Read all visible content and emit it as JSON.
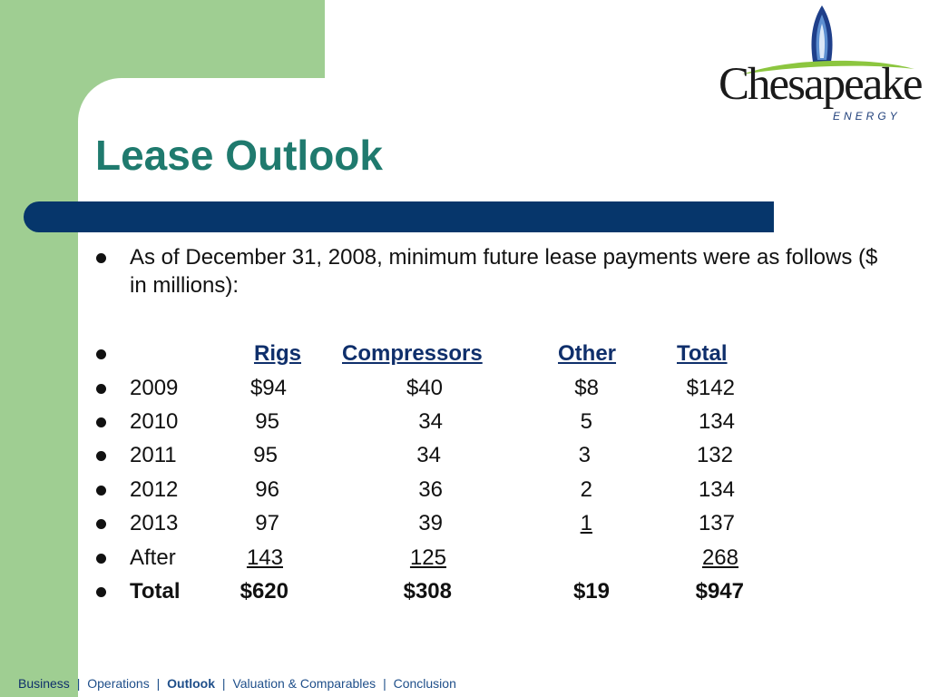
{
  "logo": {
    "wordmark": "Chesapeake",
    "subtitle": "ENERGY",
    "colors": {
      "flame": "#1f3f8a",
      "swoosh": "#8cc63f"
    }
  },
  "title": "Lease Outlook",
  "intro": "As of December 31, 2008, minimum future lease payments were as follows ($ in millions):",
  "table": {
    "headers": [
      "Rigs",
      "Compressors",
      "Other",
      "Total"
    ],
    "rows": [
      {
        "label": "2009",
        "rigs": "$94",
        "compressors": "$40",
        "other": "$8",
        "total": "$142"
      },
      {
        "label": "2010",
        "rigs": "95",
        "compressors": "34",
        "other": "5",
        "total": "134"
      },
      {
        "label": "2011",
        "rigs": "95",
        "compressors": "34",
        "other": "3",
        "total": "132"
      },
      {
        "label": "2012",
        "rigs": "96",
        "compressors": "36",
        "other": "2",
        "total": "134"
      },
      {
        "label": "2013",
        "rigs": "97",
        "compressors": "39",
        "other": "1",
        "total": "137"
      },
      {
        "label": "After",
        "rigs": "143",
        "compressors": "125",
        "other": "",
        "total": "268"
      }
    ],
    "total_row": {
      "label": "Total",
      "rigs": "$620",
      "compressors": "$308",
      "other": "$19",
      "total": "$947"
    }
  },
  "footer_nav": {
    "items": [
      "Business",
      "Operations",
      "Outlook",
      "Valuation & Comparables",
      "Conclusion"
    ],
    "active": "Outlook",
    "separator": "|"
  },
  "colors": {
    "green": "#9fce92",
    "navy": "#06366b",
    "title": "#1f7a6e"
  }
}
